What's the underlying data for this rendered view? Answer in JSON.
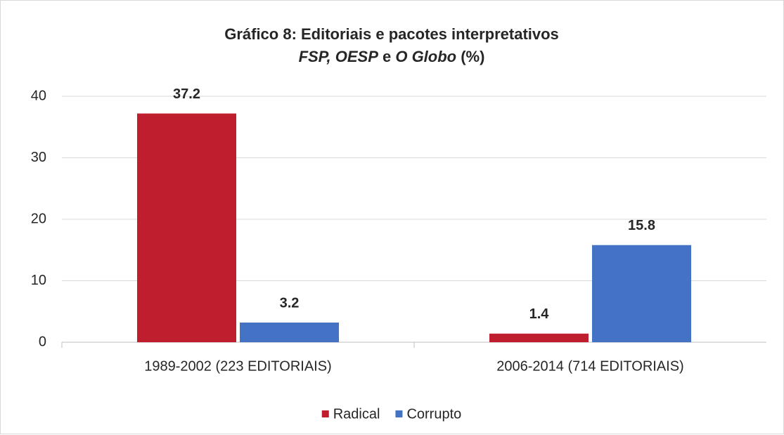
{
  "chart_data": {
    "type": "bar",
    "title": "Gráfico 8: Editoriais e pacotes interpretativos",
    "subtitle": [
      {
        "text": "FSP, OESP",
        "italic": true
      },
      {
        "text": " e ",
        "italic": false
      },
      {
        "text": "O Globo",
        "italic": true
      },
      {
        "text": " (%)",
        "italic": false
      }
    ],
    "categories": [
      "1989-2002 (223 EDITORIAIS)",
      "2006-2014 (714 EDITORIAIS)"
    ],
    "series": [
      {
        "name": "Radical",
        "color": "#be1e2d",
        "values": [
          37.2,
          1.4
        ]
      },
      {
        "name": "Corrupto",
        "color": "#4472c4",
        "values": [
          3.2,
          15.8
        ]
      }
    ],
    "ylim": [
      0,
      40
    ],
    "yticks": [
      0,
      10,
      20,
      30,
      40
    ],
    "grid": true,
    "legend": "bottom"
  }
}
